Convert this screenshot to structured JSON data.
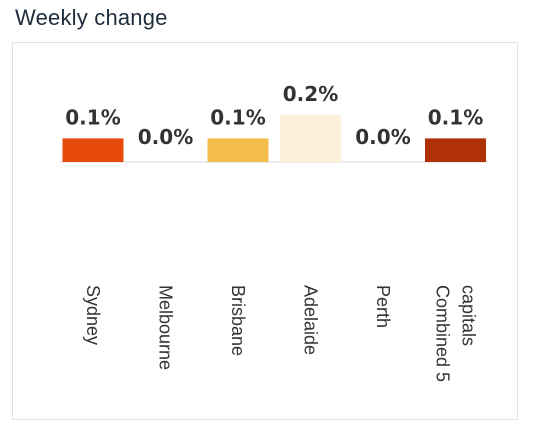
{
  "title": "Weekly change",
  "chart_data": {
    "type": "bar",
    "categories": [
      "Sydney",
      "Melbourne",
      "Brisbane",
      "Adelaide",
      "Perth",
      "Combined 5 capitals"
    ],
    "category_lines": [
      [
        "Sydney"
      ],
      [
        "Melbourne"
      ],
      [
        "Brisbane"
      ],
      [
        "Adelaide"
      ],
      [
        "Perth"
      ],
      [
        "Combined 5",
        "capitals"
      ]
    ],
    "values": [
      0.1,
      0.0,
      0.1,
      0.2,
      0.0,
      0.1
    ],
    "value_labels": [
      "0.1%",
      "0.0%",
      "0.1%",
      "0.2%",
      "0.0%",
      "0.1%"
    ],
    "colors": [
      "#e84a0c",
      "#e84a0c",
      "#f2bd4a",
      "#fdf0d8",
      "#e84a0c",
      "#b03106"
    ],
    "ylim": [
      0,
      0.2
    ],
    "grid": false,
    "legend": "none"
  }
}
